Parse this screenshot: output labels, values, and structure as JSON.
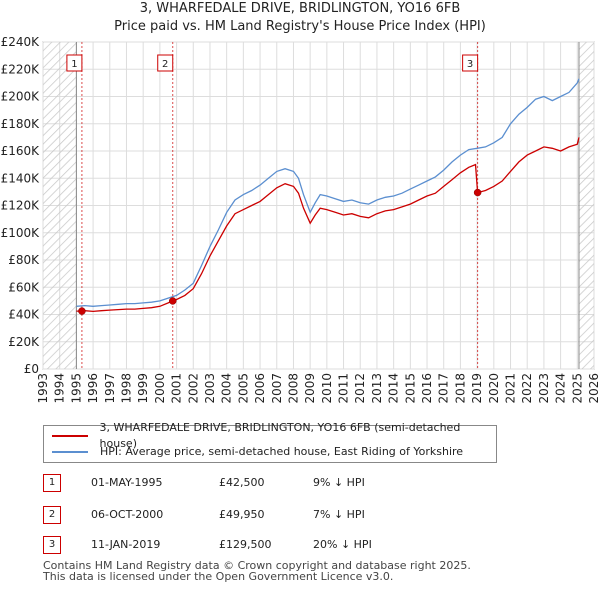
{
  "title_line1": "3, WHARFEDALE DRIVE, BRIDLINGTON, YO16 6FB",
  "title_line2": "Price paid vs. HM Land Registry's House Price Index (HPI)",
  "colors": {
    "hpi": "#5b8fd0",
    "price": "#cc0000",
    "hatch": "#cccccc",
    "grid": "#dddddd",
    "marker_line": "#cc0000"
  },
  "legend": {
    "price_label": "3, WHARFEDALE DRIVE, BRIDLINGTON, YO16 6FB (semi-detached house)",
    "hpi_label": "HPI: Average price, semi-detached house, East Riding of Yorkshire"
  },
  "sales": [
    {
      "num": "1",
      "date": "01-MAY-1995",
      "price": "£42,500",
      "hpi": "9% ↓ HPI"
    },
    {
      "num": "2",
      "date": "06-OCT-2000",
      "price": "£49,950",
      "hpi": "7% ↓ HPI"
    },
    {
      "num": "3",
      "date": "11-JAN-2019",
      "price": "£129,500",
      "hpi": "20% ↓ HPI"
    }
  ],
  "footer_line1": "Contains HM Land Registry data © Crown copyright and database right 2025.",
  "footer_line2": "This data is licensed under the Open Government Licence v3.0.",
  "chart_data": {
    "type": "line",
    "title": "3, WHARFEDALE DRIVE, BRIDLINGTON, YO16 6FB — Price paid vs. HM Land Registry's House Price Index (HPI)",
    "xlabel": "",
    "ylabel": "",
    "xlim": [
      1993,
      2026
    ],
    "ylim": [
      0,
      240000
    ],
    "x_ticks": [
      "1993",
      "1994",
      "1995",
      "1996",
      "1997",
      "1998",
      "1999",
      "2000",
      "2001",
      "2002",
      "2003",
      "2004",
      "2005",
      "2006",
      "2007",
      "2008",
      "2009",
      "2010",
      "2011",
      "2012",
      "2013",
      "2014",
      "2015",
      "2016",
      "2017",
      "2018",
      "2019",
      "2020",
      "2021",
      "2022",
      "2023",
      "2024",
      "2025",
      "2026"
    ],
    "y_ticks": [
      "£0",
      "£20K",
      "£40K",
      "£60K",
      "£80K",
      "£100K",
      "£120K",
      "£140K",
      "£160K",
      "£180K",
      "£200K",
      "£220K",
      "£240K"
    ],
    "hatched_ranges": [
      [
        1993,
        1995.0
      ],
      [
        2025.1,
        2026
      ]
    ],
    "sale_markers": [
      {
        "label": "1",
        "x": 1995.33,
        "y": 42500
      },
      {
        "label": "2",
        "x": 2000.77,
        "y": 49950
      },
      {
        "label": "3",
        "x": 2019.03,
        "y": 129500
      }
    ],
    "series": [
      {
        "name": "HPI: Average price, semi-detached house, East Riding of Yorkshire",
        "x": [
          1995.0,
          1995.5,
          1996,
          1996.5,
          1997,
          1997.5,
          1998,
          1998.5,
          1999,
          1999.5,
          2000,
          2000.5,
          2001,
          2001.5,
          2002,
          2002.5,
          2003,
          2003.5,
          2004,
          2004.5,
          2005,
          2005.5,
          2006,
          2006.5,
          2007,
          2007.5,
          2008,
          2008.3,
          2008.6,
          2009,
          2009.3,
          2009.6,
          2010,
          2010.5,
          2011,
          2011.5,
          2012,
          2012.5,
          2013,
          2013.5,
          2014,
          2014.5,
          2015,
          2015.5,
          2016,
          2016.5,
          2017,
          2017.5,
          2018,
          2018.5,
          2019,
          2019.5,
          2020,
          2020.5,
          2021,
          2021.5,
          2022,
          2022.5,
          2023,
          2023.5,
          2024,
          2024.5,
          2025,
          2025.1
        ],
        "values": [
          46000,
          46500,
          46000,
          46500,
          47000,
          47500,
          48000,
          48000,
          48500,
          49000,
          50000,
          52000,
          54000,
          58000,
          63000,
          76000,
          90000,
          102000,
          115000,
          124000,
          128000,
          131000,
          135000,
          140000,
          145000,
          147000,
          145000,
          140000,
          128000,
          115000,
          122000,
          128000,
          127000,
          125000,
          123000,
          124000,
          122000,
          121000,
          124000,
          126000,
          127000,
          129000,
          132000,
          135000,
          138000,
          141000,
          146000,
          152000,
          157000,
          161000,
          162000,
          163000,
          166000,
          170000,
          180000,
          187000,
          192000,
          198000,
          200000,
          197000,
          200000,
          203000,
          210000,
          213000
        ]
      },
      {
        "name": "3, WHARFEDALE DRIVE, BRIDLINGTON, YO16 6FB (semi-detached house)",
        "x": [
          1995.0,
          1995.33,
          1995.5,
          1996,
          1996.5,
          1997,
          1997.5,
          1998,
          1998.5,
          1999,
          1999.5,
          2000,
          2000.5,
          2000.77,
          2001,
          2001.5,
          2002,
          2002.5,
          2003,
          2003.5,
          2004,
          2004.5,
          2005,
          2005.5,
          2006,
          2006.5,
          2007,
          2007.5,
          2008,
          2008.3,
          2008.6,
          2009,
          2009.3,
          2009.6,
          2010,
          2010.5,
          2011,
          2011.5,
          2012,
          2012.5,
          2013,
          2013.5,
          2014,
          2014.5,
          2015,
          2015.5,
          2016,
          2016.5,
          2017,
          2017.5,
          2018,
          2018.5,
          2018.9,
          2019.03,
          2019.5,
          2020,
          2020.5,
          2021,
          2021.5,
          2022,
          2022.5,
          2023,
          2023.5,
          2024,
          2024.5,
          2025,
          2025.1
        ],
        "values": [
          42500,
          42500,
          42800,
          42300,
          42800,
          43200,
          43600,
          44000,
          44000,
          44500,
          45000,
          46000,
          48500,
          49950,
          51000,
          54000,
          59000,
          70000,
          83000,
          94000,
          105000,
          114000,
          117000,
          120000,
          123000,
          128000,
          133000,
          136000,
          134000,
          129000,
          118000,
          107000,
          113000,
          118000,
          117000,
          115000,
          113000,
          114000,
          112000,
          111000,
          114000,
          116000,
          117000,
          119000,
          121000,
          124000,
          127000,
          129000,
          134000,
          139000,
          144000,
          148000,
          150000,
          129500,
          131000,
          134000,
          138000,
          145000,
          152000,
          157000,
          160000,
          163000,
          162000,
          160000,
          163000,
          165000,
          170000
        ]
      }
    ]
  }
}
